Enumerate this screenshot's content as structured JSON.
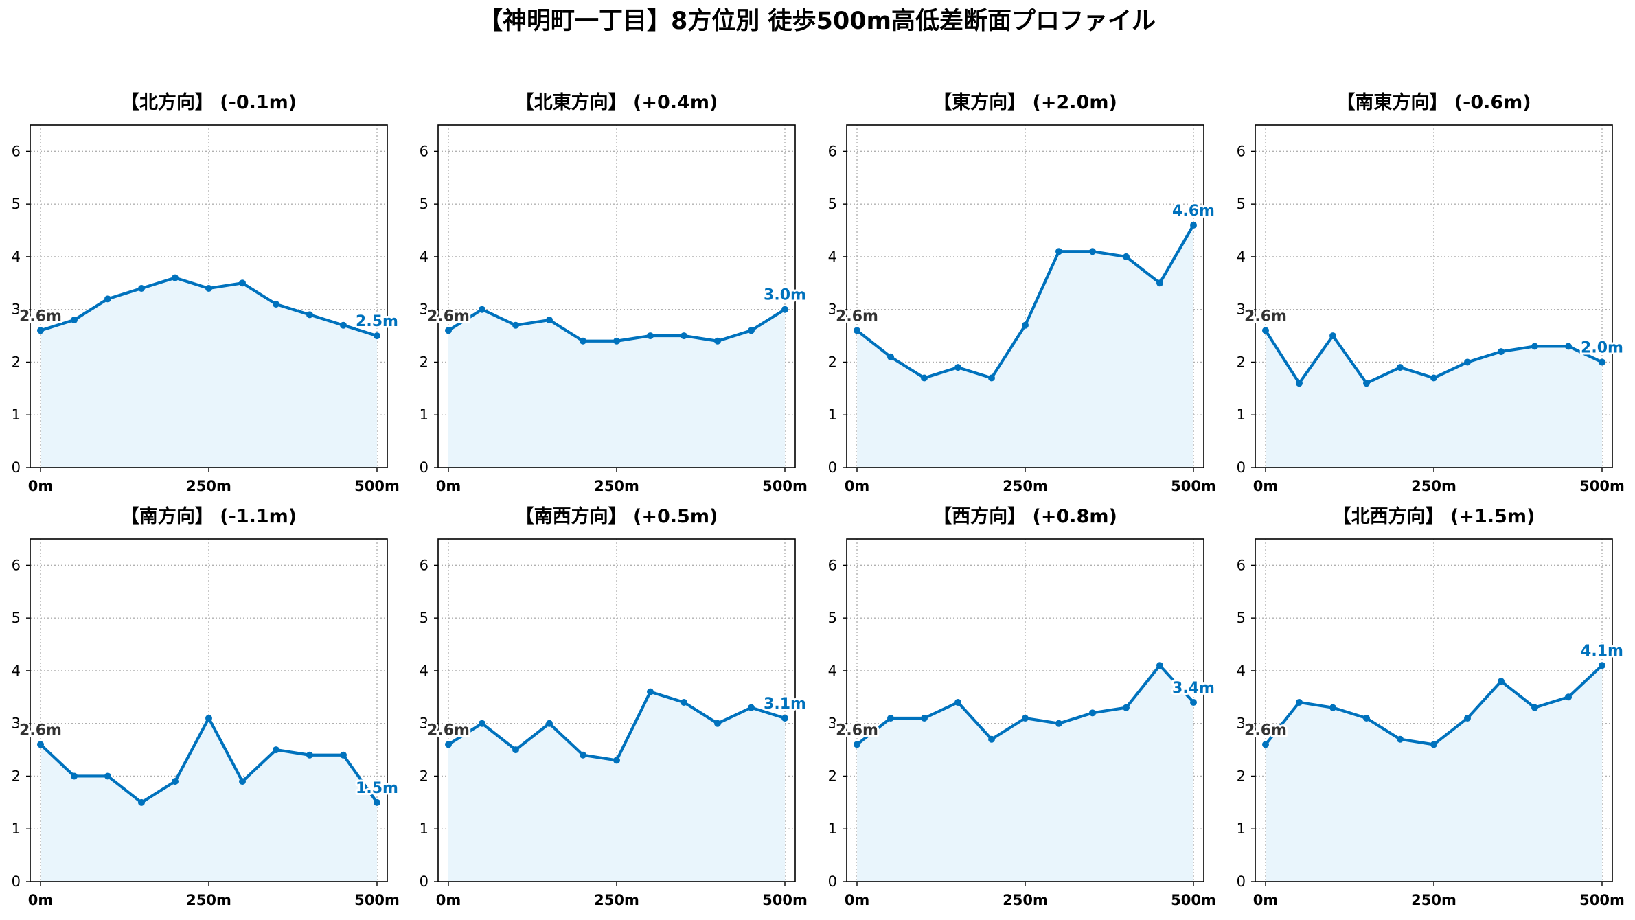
{
  "title": "【神明町一丁目】8方位別 徒歩500m高低差断面プロファイル",
  "colors": {
    "line": "#0072BD",
    "fill": "#E9F5FC",
    "start_label": "#333333",
    "end_label": "#0072BD"
  },
  "chart_data": [
    {
      "type": "area",
      "title": "【北方向】 (-0.1m)",
      "grid": true,
      "x": [
        0,
        50,
        100,
        150,
        200,
        250,
        300,
        350,
        400,
        450,
        500
      ],
      "values": [
        2.6,
        2.8,
        3.2,
        3.4,
        3.6,
        3.4,
        3.5,
        3.1,
        2.9,
        2.7,
        2.5
      ],
      "xticks": [
        "0m",
        "250m",
        "500m"
      ],
      "yticks": [
        "0",
        "1",
        "2",
        "3",
        "4",
        "5",
        "6"
      ],
      "ylim": [
        0,
        6.5
      ],
      "start_label": "2.6m",
      "end_label": "2.5m"
    },
    {
      "type": "area",
      "title": "【北東方向】 (+0.4m)",
      "grid": true,
      "x": [
        0,
        50,
        100,
        150,
        200,
        250,
        300,
        350,
        400,
        450,
        500
      ],
      "values": [
        2.6,
        3.0,
        2.7,
        2.8,
        2.4,
        2.4,
        2.5,
        2.5,
        2.4,
        2.6,
        3.0
      ],
      "xticks": [
        "0m",
        "250m",
        "500m"
      ],
      "yticks": [
        "0",
        "1",
        "2",
        "3",
        "4",
        "5",
        "6"
      ],
      "ylim": [
        0,
        6.5
      ],
      "start_label": "2.6m",
      "end_label": "3.0m"
    },
    {
      "type": "area",
      "title": "【東方向】 (+2.0m)",
      "grid": true,
      "x": [
        0,
        50,
        100,
        150,
        200,
        250,
        300,
        350,
        400,
        450,
        500
      ],
      "values": [
        2.6,
        2.1,
        1.7,
        1.9,
        1.7,
        2.7,
        4.1,
        4.1,
        4.0,
        3.5,
        4.6
      ],
      "xticks": [
        "0m",
        "250m",
        "500m"
      ],
      "yticks": [
        "0",
        "1",
        "2",
        "3",
        "4",
        "5",
        "6"
      ],
      "ylim": [
        0,
        6.5
      ],
      "start_label": "2.6m",
      "end_label": "4.6m"
    },
    {
      "type": "area",
      "title": "【南東方向】 (-0.6m)",
      "grid": true,
      "x": [
        0,
        50,
        100,
        150,
        200,
        250,
        300,
        350,
        400,
        450,
        500
      ],
      "values": [
        2.6,
        1.6,
        2.5,
        1.6,
        1.9,
        1.7,
        2.0,
        2.2,
        2.3,
        2.3,
        2.0
      ],
      "xticks": [
        "0m",
        "250m",
        "500m"
      ],
      "yticks": [
        "0",
        "1",
        "2",
        "3",
        "4",
        "5",
        "6"
      ],
      "ylim": [
        0,
        6.5
      ],
      "start_label": "2.6m",
      "end_label": "2.0m"
    },
    {
      "type": "area",
      "title": "【南方向】 (-1.1m)",
      "grid": true,
      "x": [
        0,
        50,
        100,
        150,
        200,
        250,
        300,
        350,
        400,
        450,
        500
      ],
      "values": [
        2.6,
        2.0,
        2.0,
        1.5,
        1.9,
        3.1,
        1.9,
        2.5,
        2.4,
        2.4,
        1.5
      ],
      "xticks": [
        "0m",
        "250m",
        "500m"
      ],
      "yticks": [
        "0",
        "1",
        "2",
        "3",
        "4",
        "5",
        "6"
      ],
      "ylim": [
        0,
        6.5
      ],
      "start_label": "2.6m",
      "end_label": "1.5m"
    },
    {
      "type": "area",
      "title": "【南西方向】 (+0.5m)",
      "grid": true,
      "x": [
        0,
        50,
        100,
        150,
        200,
        250,
        300,
        350,
        400,
        450,
        500
      ],
      "values": [
        2.6,
        3.0,
        2.5,
        3.0,
        2.4,
        2.3,
        3.6,
        3.4,
        3.0,
        3.3,
        3.1
      ],
      "xticks": [
        "0m",
        "250m",
        "500m"
      ],
      "yticks": [
        "0",
        "1",
        "2",
        "3",
        "4",
        "5",
        "6"
      ],
      "ylim": [
        0,
        6.5
      ],
      "start_label": "2.6m",
      "end_label": "3.1m"
    },
    {
      "type": "area",
      "title": "【西方向】 (+0.8m)",
      "grid": true,
      "x": [
        0,
        50,
        100,
        150,
        200,
        250,
        300,
        350,
        400,
        450,
        500
      ],
      "values": [
        2.6,
        3.1,
        3.1,
        3.4,
        2.7,
        3.1,
        3.0,
        3.2,
        3.3,
        4.1,
        3.4
      ],
      "xticks": [
        "0m",
        "250m",
        "500m"
      ],
      "yticks": [
        "0",
        "1",
        "2",
        "3",
        "4",
        "5",
        "6"
      ],
      "ylim": [
        0,
        6.5
      ],
      "start_label": "2.6m",
      "end_label": "3.4m"
    },
    {
      "type": "area",
      "title": "【北西方向】 (+1.5m)",
      "grid": true,
      "x": [
        0,
        50,
        100,
        150,
        200,
        250,
        300,
        350,
        400,
        450,
        500
      ],
      "values": [
        2.6,
        3.4,
        3.3,
        3.1,
        2.7,
        2.6,
        3.1,
        3.8,
        3.3,
        3.5,
        4.1
      ],
      "xticks": [
        "0m",
        "250m",
        "500m"
      ],
      "yticks": [
        "0",
        "1",
        "2",
        "3",
        "4",
        "5",
        "6"
      ],
      "ylim": [
        0,
        6.5
      ],
      "start_label": "2.6m",
      "end_label": "4.1m"
    }
  ]
}
